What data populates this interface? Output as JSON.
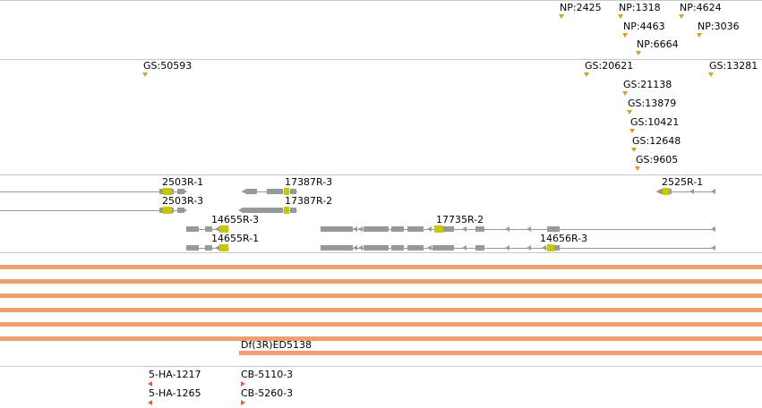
{
  "colors": {
    "marker_gold": "#d4a020",
    "marker_orange": "#e86030",
    "gene": "#999999",
    "cds": "#c8c800",
    "deficiency": "#f0a070",
    "divider": "#c8c8c8"
  },
  "np_track": {
    "labels": [
      "NP:2425",
      "NP:1318",
      "NP:4624",
      "NP:4463",
      "NP:3036",
      "NP:6664"
    ]
  },
  "gs_track": {
    "labels": [
      "GS:50593",
      "GS:20621",
      "GS:13281",
      "GS:21138",
      "GS:13879",
      "GS:10421",
      "GS:12648",
      "GS:9605"
    ]
  },
  "transcripts": {
    "labels": [
      "2503R-1",
      "17387R-3",
      "2525R-1",
      "2503R-3",
      "17387R-2",
      "14655R-3",
      "17735R-2",
      "14655R-1",
      "14656R-3"
    ]
  },
  "deficiency": {
    "label": "Df(3R)ED5138"
  },
  "insertions": {
    "labels": [
      "5-HA-1217",
      "CB-5110-3",
      "5-HA-1265",
      "CB-5260-3"
    ]
  }
}
